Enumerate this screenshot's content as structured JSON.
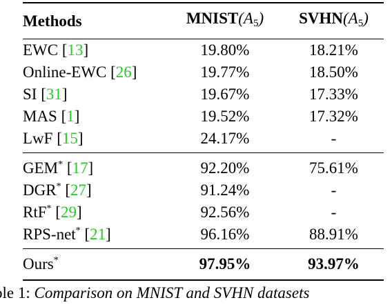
{
  "table": {
    "headers": {
      "method": "Methods",
      "mnist_label": "MNIST",
      "mnist_arg": "(A",
      "mnist_sub": "5",
      "mnist_close": ")",
      "svhn_label": "SVHN",
      "svhn_arg": "(A",
      "svhn_sub": "5",
      "svhn_close": ")"
    },
    "rows": [
      {
        "method": "EWC",
        "star": "",
        "ref": "13",
        "mnist": "19.80%",
        "svhn": "18.21%"
      },
      {
        "method": "Online-EWC",
        "star": "",
        "ref": "26",
        "mnist": "19.77%",
        "svhn": "18.50%"
      },
      {
        "method": "SI",
        "star": "",
        "ref": "31",
        "mnist": "19.67%",
        "svhn": "17.33%"
      },
      {
        "method": "MAS",
        "star": "",
        "ref": "1",
        "mnist": "19.52%",
        "svhn": "17.32%"
      },
      {
        "method": "LwF",
        "star": "",
        "ref": "15",
        "mnist": "24.17%",
        "svhn": "-"
      },
      {
        "method": "GEM",
        "star": "*",
        "ref": "17",
        "mnist": "92.20%",
        "svhn": "75.61%"
      },
      {
        "method": "DGR",
        "star": "*",
        "ref": "27",
        "mnist": "91.24%",
        "svhn": "-"
      },
      {
        "method": "RtF",
        "star": "*",
        "ref": "29",
        "mnist": "92.56%",
        "svhn": "-"
      },
      {
        "method": "RPS-net",
        "star": "*",
        "ref": "21",
        "mnist": "96.16%",
        "svhn": "88.91%"
      },
      {
        "method": "Ours",
        "star": "*",
        "ref": "",
        "mnist": "97.95%",
        "svhn": "93.97%"
      }
    ],
    "bracket_open": "[",
    "bracket_close": "]"
  },
  "caption": {
    "label": "ble 1:",
    "text": "Comparison on MNIST and SVHN datasets"
  },
  "colors": {
    "citation": "#22cc22",
    "text": "#000000"
  }
}
